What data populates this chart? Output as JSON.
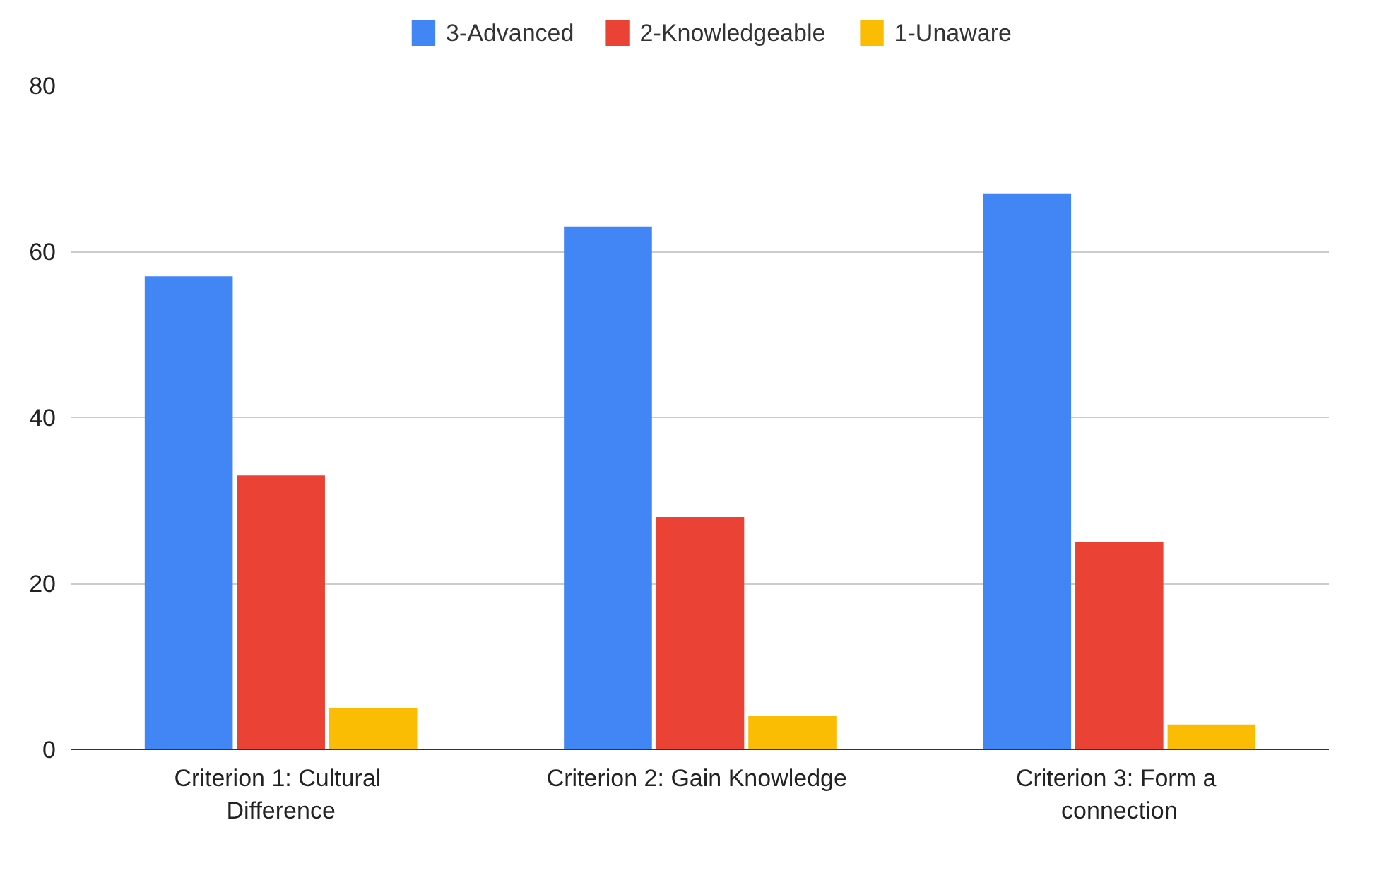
{
  "chart_data": {
    "type": "bar",
    "categories": [
      "Criterion 1:  Cultural Difference",
      "Criterion 2:  Gain Knowledge",
      "Criterion 3:  Form a connection"
    ],
    "series": [
      {
        "name": "3-Advanced",
        "color": "#4285f4",
        "values": [
          57,
          63,
          67
        ]
      },
      {
        "name": "2-Knowledgeable",
        "color": "#ea4335",
        "values": [
          33,
          28,
          25
        ]
      },
      {
        "name": "1-Unaware",
        "color": "#fbbc04",
        "values": [
          5,
          4,
          3
        ]
      }
    ],
    "ylim": [
      0,
      80
    ],
    "yticks": [
      0,
      20,
      40,
      60,
      80
    ],
    "grid": "y",
    "legend": "top"
  }
}
